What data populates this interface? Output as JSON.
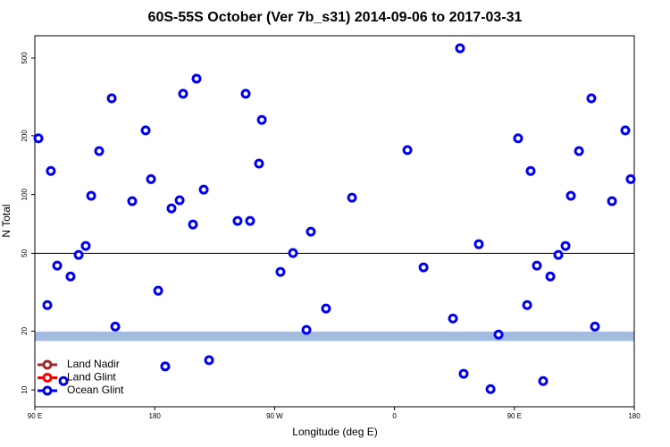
{
  "chart_data": {
    "type": "scatter",
    "title": "60S-55S October (Ver 7b_s31)   2014-09-06 to 2017-03-31",
    "x_label": "Longitude (deg E)",
    "y_label": "N Total",
    "xlim": [
      90,
      540
    ],
    "xticks": [
      {
        "value": 90,
        "label": "90 E"
      },
      {
        "value": 180,
        "label": "180"
      },
      {
        "value": 270,
        "label": "90 W"
      },
      {
        "value": 360,
        "label": "0"
      },
      {
        "value": 450,
        "label": "90 E"
      },
      {
        "value": 540,
        "label": "180"
      }
    ],
    "ylim": [
      8.2,
      650
    ],
    "yticks": [
      10,
      20,
      50,
      100,
      200,
      500
    ],
    "log_y": true,
    "hline": 50,
    "band": [
      17.8,
      19.9
    ],
    "band_color": "#a3bbdf",
    "legend": "bottom-left",
    "series": [
      {
        "name": "Land Nadir",
        "color": "#a02828",
        "x": [],
        "values": []
      },
      {
        "name": "Land Glint",
        "color": "#ff0000",
        "x": [],
        "values": []
      },
      {
        "name": "Ocean Glint",
        "color": "#0000ee",
        "x": [
          92.7,
          102,
          99.4,
          106.8,
          111.5,
          116.8,
          122.9,
          128.2,
          132.3,
          138.3,
          147.7,
          150.4,
          163.1,
          173.2,
          177.2,
          182.6,
          187.9,
          192.6,
          198.7,
          201.3,
          208.7,
          211.4,
          216.8,
          220.8,
          242.2,
          248.3,
          251.6,
          258.3,
          260.4,
          274.4,
          283.8,
          293.9,
          297.2,
          308.6,
          328.1,
          369.7,
          381.8,
          403.9,
          409.2,
          411.9,
          423.3,
          432.1,
          438.1,
          452.8,
          459.6,
          462.2,
          466.9,
          471.6,
          477,
          483,
          488.4,
          492.4,
          498.5,
          507.8,
          510.5,
          523.3,
          533.3,
          537.3
        ],
        "values": [
          194,
          132,
          27.2,
          43.3,
          11.1,
          38.1,
          49.1,
          54.6,
          98.6,
          167,
          311,
          21.1,
          92.5,
          213,
          120,
          32.2,
          13.2,
          85,
          93.5,
          328,
          70.3,
          392,
          106,
          14.2,
          73.3,
          328,
          73.3,
          144,
          241,
          40.2,
          50.2,
          20.3,
          64.6,
          26.1,
          96.4,
          169,
          42.4,
          23.2,
          561,
          12.1,
          55.7,
          10.1,
          19.2,
          194,
          27.2,
          132,
          43.3,
          11.1,
          38.1,
          49.1,
          54.6,
          98.6,
          167,
          311,
          21.1,
          92.5,
          213,
          120
        ]
      }
    ]
  }
}
